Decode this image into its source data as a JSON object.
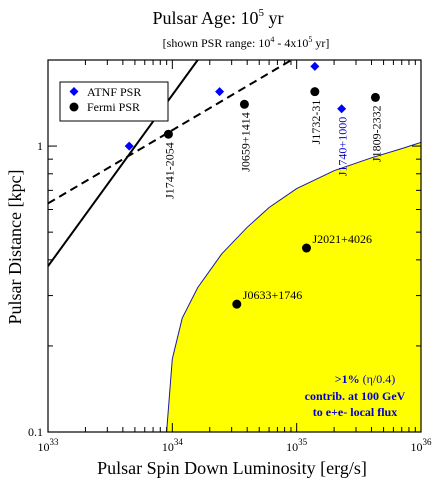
{
  "chart_data": {
    "type": "scatter",
    "title": {
      "main": "Pulsar Age: 10",
      "main_sup": "5",
      "main_unit": " yr",
      "subtitle_a": "[shown PSR range: 10",
      "subtitle_sup1": "4",
      "subtitle_b": " -  4x10",
      "subtitle_sup2": "5",
      "subtitle_c": " yr]"
    },
    "xlabel": "Pulsar Spin Down Luminosity [erg/s]",
    "ylabel": "Pulsar Distance [kpc]",
    "xscale": "log",
    "yscale": "log",
    "xlim": [
      1e+33,
      1e+36
    ],
    "ylim": [
      0.1,
      2.0
    ],
    "xticks": [
      {
        "value": 1e+33,
        "base": "10",
        "exp": "33"
      },
      {
        "value": 1e+34,
        "base": "10",
        "exp": "34"
      },
      {
        "value": 1e+35,
        "base": "10",
        "exp": "35"
      },
      {
        "value": 1e+36,
        "base": "10",
        "exp": "36"
      }
    ],
    "yticks": [
      {
        "value": 0.1,
        "label": "0.1"
      },
      {
        "value": 1,
        "label": "1"
      }
    ],
    "legend": {
      "position": "top-left",
      "entries": [
        {
          "label": "ATNF PSR",
          "marker": "diamond",
          "color": "#0000ff"
        },
        {
          "label": "Fermi PSR",
          "marker": "circle",
          "color": "#000000"
        }
      ]
    },
    "series": [
      {
        "name": "ATNF PSR",
        "marker": "diamond",
        "color": "#0000ff",
        "points": [
          {
            "x": 4.5e+33,
            "y": 1.0
          },
          {
            "x": 2.4e+34,
            "y": 1.55
          },
          {
            "x": 1.4e+35,
            "y": 1.9
          },
          {
            "x": 2.3e+35,
            "y": 1.35
          }
        ]
      },
      {
        "name": "Fermi PSR",
        "marker": "circle",
        "color": "#000000",
        "points": [
          {
            "x": 9.3e+33,
            "y": 1.1
          },
          {
            "x": 3.8e+34,
            "y": 1.4
          },
          {
            "x": 1.4e+35,
            "y": 1.55
          },
          {
            "x": 4.3e+35,
            "y": 1.48
          },
          {
            "x": 1.2e+35,
            "y": 0.44
          },
          {
            "x": 3.3e+34,
            "y": 0.28
          }
        ]
      }
    ],
    "point_labels": [
      {
        "text": "J1741-2054",
        "x": 9.3e+33,
        "y": 1.1,
        "orientation": "vertical",
        "color": "#000000"
      },
      {
        "text": "J0659+1414",
        "x": 3.8e+34,
        "y": 1.4,
        "orientation": "vertical",
        "color": "#000000"
      },
      {
        "text": "J1732-31",
        "x": 1.4e+35,
        "y": 1.55,
        "orientation": "vertical",
        "color": "#000000"
      },
      {
        "text": "J1740+1000",
        "x": 2.3e+35,
        "y": 1.35,
        "orientation": "vertical",
        "color": "#0000cc"
      },
      {
        "text": "J1809-2332",
        "x": 4.3e+35,
        "y": 1.48,
        "orientation": "vertical",
        "color": "#000000"
      },
      {
        "text": "J2021+4026",
        "x": 1.2e+35,
        "y": 0.44,
        "orientation": "horizontal",
        "color": "#000000"
      },
      {
        "text": "J0633+1746",
        "x": 3.3e+34,
        "y": 0.28,
        "orientation": "horizontal",
        "color": "#000000"
      }
    ],
    "lines": [
      {
        "style": "solid",
        "color": "#000000",
        "points": [
          [
            1e+33,
            0.38
          ],
          [
            1.6e+34,
            2.0
          ]
        ]
      },
      {
        "style": "dashed",
        "color": "#000000",
        "points": [
          [
            1e+33,
            0.63
          ],
          [
            1e+35,
            2.05
          ]
        ]
      }
    ],
    "region": {
      "fill": "#ffff00",
      "edge": "#1a1aa0",
      "note_main": ">1%",
      "note_paren": " (η/0.4)",
      "note_line2": "contrib. at 100 GeV",
      "note_line3": "to e+e- local flux",
      "note_color": "#0000cc",
      "boundary": [
        [
          9e+33,
          0.1
        ],
        [
          1e+34,
          0.18
        ],
        [
          1.2e+34,
          0.25
        ],
        [
          1.6e+34,
          0.32
        ],
        [
          2.5e+34,
          0.42
        ],
        [
          4e+34,
          0.52
        ],
        [
          6e+34,
          0.61
        ],
        [
          1e+35,
          0.71
        ],
        [
          2e+35,
          0.82
        ],
        [
          4e+35,
          0.91
        ],
        [
          7e+35,
          0.98
        ],
        [
          1e+36,
          1.03
        ]
      ]
    }
  }
}
